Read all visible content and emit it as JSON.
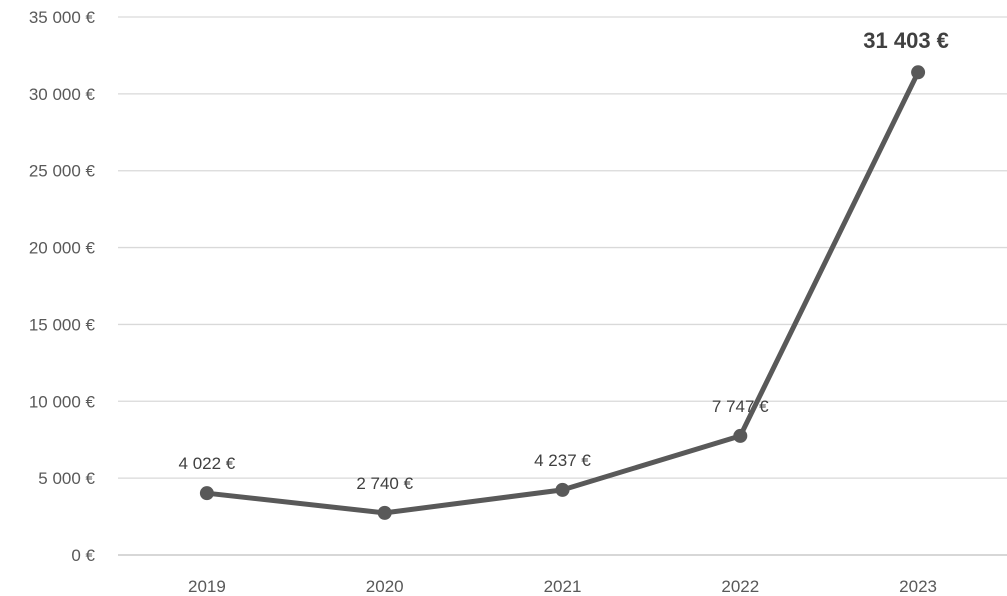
{
  "chart_data": {
    "type": "line",
    "categories": [
      "2019",
      "2020",
      "2021",
      "2022",
      "2023"
    ],
    "values": [
      4022,
      2740,
      4237,
      7747,
      31403
    ],
    "data_labels": [
      "4 022 €",
      "2 740 €",
      "4 237 €",
      "7 747 €",
      "31 403 €"
    ],
    "highlighted_label_index": 4,
    "title": "",
    "xlabel": "",
    "ylabel": "",
    "ylim": [
      0,
      35000
    ],
    "y_ticks": [
      {
        "value": 0,
        "label": "0 €"
      },
      {
        "value": 5000,
        "label": "5 000 €"
      },
      {
        "value": 10000,
        "label": "10 000 €"
      },
      {
        "value": 15000,
        "label": "15 000 €"
      },
      {
        "value": 20000,
        "label": "20 000 €"
      },
      {
        "value": 25000,
        "label": "25 000 €"
      },
      {
        "value": 30000,
        "label": "30 000 €"
      },
      {
        "value": 35000,
        "label": "35 000 €"
      }
    ],
    "grid": true,
    "legend": "none",
    "colors": {
      "line": "#595959",
      "grid": "#d9d9d9",
      "axis": "#bfbfbf"
    }
  }
}
